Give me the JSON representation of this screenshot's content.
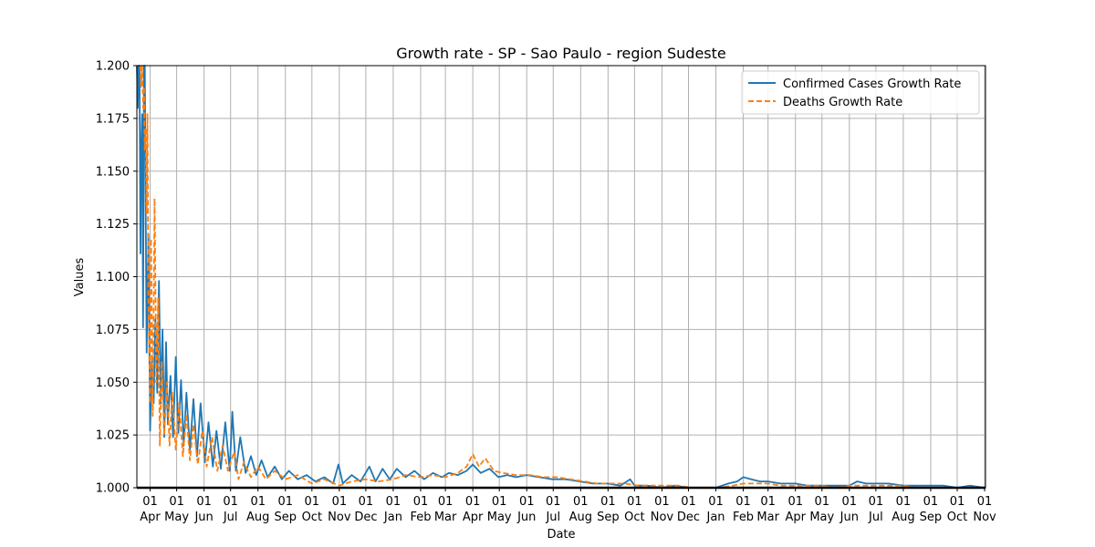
{
  "chart_data": {
    "type": "line",
    "title": "Growth rate - SP - Sao Paulo - region Sudeste",
    "xlabel": "Date",
    "ylabel": "Values",
    "ylim": [
      1.0,
      1.2
    ],
    "xlim": [
      "2020-03-17",
      "2022-11-02"
    ],
    "grid": true,
    "legend_position": "top-right",
    "y_ticks": [
      "1.000",
      "1.025",
      "1.050",
      "1.075",
      "1.100",
      "1.125",
      "1.150",
      "1.175",
      "1.200"
    ],
    "x_ticks": [
      {
        "date": "2020-04-01",
        "day": "01",
        "month": "Apr"
      },
      {
        "date": "2020-05-01",
        "day": "01",
        "month": "May"
      },
      {
        "date": "2020-06-01",
        "day": "01",
        "month": "Jun"
      },
      {
        "date": "2020-07-01",
        "day": "01",
        "month": "Jul"
      },
      {
        "date": "2020-08-01",
        "day": "01",
        "month": "Aug"
      },
      {
        "date": "2020-09-01",
        "day": "01",
        "month": "Sep"
      },
      {
        "date": "2020-10-01",
        "day": "01",
        "month": "Oct"
      },
      {
        "date": "2020-11-01",
        "day": "01",
        "month": "Nov"
      },
      {
        "date": "2020-12-01",
        "day": "01",
        "month": "Dec"
      },
      {
        "date": "2021-01-01",
        "day": "01",
        "month": "Jan"
      },
      {
        "date": "2021-02-01",
        "day": "01",
        "month": "Feb"
      },
      {
        "date": "2021-03-01",
        "day": "01",
        "month": "Mar"
      },
      {
        "date": "2021-04-01",
        "day": "01",
        "month": "Apr"
      },
      {
        "date": "2021-05-01",
        "day": "01",
        "month": "May"
      },
      {
        "date": "2021-06-01",
        "day": "01",
        "month": "Jun"
      },
      {
        "date": "2021-07-01",
        "day": "01",
        "month": "Jul"
      },
      {
        "date": "2021-08-01",
        "day": "01",
        "month": "Aug"
      },
      {
        "date": "2021-09-01",
        "day": "01",
        "month": "Sep"
      },
      {
        "date": "2021-10-01",
        "day": "01",
        "month": "Oct"
      },
      {
        "date": "2021-11-01",
        "day": "01",
        "month": "Nov"
      },
      {
        "date": "2021-12-01",
        "day": "01",
        "month": "Dec"
      },
      {
        "date": "2022-01-01",
        "day": "01",
        "month": "Jan"
      },
      {
        "date": "2022-02-01",
        "day": "01",
        "month": "Feb"
      },
      {
        "date": "2022-03-01",
        "day": "01",
        "month": "Mar"
      },
      {
        "date": "2022-04-01",
        "day": "01",
        "month": "Apr"
      },
      {
        "date": "2022-05-01",
        "day": "01",
        "month": "May"
      },
      {
        "date": "2022-06-01",
        "day": "01",
        "month": "Jun"
      },
      {
        "date": "2022-07-01",
        "day": "01",
        "month": "Jul"
      },
      {
        "date": "2022-08-01",
        "day": "01",
        "month": "Aug"
      },
      {
        "date": "2022-09-01",
        "day": "01",
        "month": "Sep"
      },
      {
        "date": "2022-10-01",
        "day": "01",
        "month": "Oct"
      },
      {
        "date": "2022-11-01",
        "day": "01",
        "month": "Nov"
      }
    ],
    "series": [
      {
        "name": "Confirmed Cases Growth Rate",
        "color": "#1f77b4",
        "style": "solid",
        "points": [
          [
            "2020-03-17",
            1.2
          ],
          [
            "2020-03-18",
            1.18
          ],
          [
            "2020-03-19",
            1.2
          ],
          [
            "2020-03-20",
            1.2
          ],
          [
            "2020-03-21",
            1.111
          ],
          [
            "2020-03-22",
            1.16
          ],
          [
            "2020-03-23",
            1.177
          ],
          [
            "2020-03-24",
            1.076
          ],
          [
            "2020-03-25",
            1.2
          ],
          [
            "2020-03-26",
            1.2
          ],
          [
            "2020-03-27",
            1.13
          ],
          [
            "2020-03-28",
            1.064
          ],
          [
            "2020-03-30",
            1.12
          ],
          [
            "2020-04-01",
            1.027
          ],
          [
            "2020-04-03",
            1.06
          ],
          [
            "2020-04-05",
            1.04
          ],
          [
            "2020-04-07",
            1.08
          ],
          [
            "2020-04-09",
            1.045
          ],
          [
            "2020-04-11",
            1.098
          ],
          [
            "2020-04-13",
            1.04
          ],
          [
            "2020-04-15",
            1.075
          ],
          [
            "2020-04-17",
            1.024
          ],
          [
            "2020-04-19",
            1.069
          ],
          [
            "2020-04-21",
            1.03
          ],
          [
            "2020-04-24",
            1.053
          ],
          [
            "2020-04-27",
            1.024
          ],
          [
            "2020-04-30",
            1.062
          ],
          [
            "2020-05-03",
            1.026
          ],
          [
            "2020-05-06",
            1.051
          ],
          [
            "2020-05-09",
            1.02
          ],
          [
            "2020-05-12",
            1.045
          ],
          [
            "2020-05-16",
            1.018
          ],
          [
            "2020-05-20",
            1.042
          ],
          [
            "2020-05-24",
            1.015
          ],
          [
            "2020-05-28",
            1.04
          ],
          [
            "2020-06-02",
            1.012
          ],
          [
            "2020-06-06",
            1.031
          ],
          [
            "2020-06-11",
            1.01
          ],
          [
            "2020-06-15",
            1.027
          ],
          [
            "2020-06-20",
            1.009
          ],
          [
            "2020-06-25",
            1.031
          ],
          [
            "2020-06-30",
            1.008
          ],
          [
            "2020-07-03",
            1.036
          ],
          [
            "2020-07-07",
            1.008
          ],
          [
            "2020-07-12",
            1.024
          ],
          [
            "2020-07-18",
            1.007
          ],
          [
            "2020-07-24",
            1.015
          ],
          [
            "2020-07-30",
            1.006
          ],
          [
            "2020-08-05",
            1.013
          ],
          [
            "2020-08-12",
            1.005
          ],
          [
            "2020-08-20",
            1.01
          ],
          [
            "2020-08-28",
            1.004
          ],
          [
            "2020-09-05",
            1.008
          ],
          [
            "2020-09-15",
            1.004
          ],
          [
            "2020-09-25",
            1.006
          ],
          [
            "2020-10-05",
            1.003
          ],
          [
            "2020-10-15",
            1.005
          ],
          [
            "2020-10-25",
            1.002
          ],
          [
            "2020-10-31",
            1.011
          ],
          [
            "2020-11-05",
            1.002
          ],
          [
            "2020-11-15",
            1.006
          ],
          [
            "2020-11-25",
            1.003
          ],
          [
            "2020-12-05",
            1.01
          ],
          [
            "2020-12-12",
            1.003
          ],
          [
            "2020-12-20",
            1.009
          ],
          [
            "2020-12-28",
            1.004
          ],
          [
            "2021-01-05",
            1.009
          ],
          [
            "2021-01-15",
            1.005
          ],
          [
            "2021-01-25",
            1.008
          ],
          [
            "2021-02-05",
            1.004
          ],
          [
            "2021-02-15",
            1.007
          ],
          [
            "2021-02-25",
            1.005
          ],
          [
            "2021-03-05",
            1.007
          ],
          [
            "2021-03-15",
            1.006
          ],
          [
            "2021-03-25",
            1.008
          ],
          [
            "2021-04-01",
            1.011
          ],
          [
            "2021-04-10",
            1.007
          ],
          [
            "2021-04-20",
            1.009
          ],
          [
            "2021-04-30",
            1.005
          ],
          [
            "2021-05-10",
            1.006
          ],
          [
            "2021-05-20",
            1.005
          ],
          [
            "2021-06-01",
            1.006
          ],
          [
            "2021-06-15",
            1.005
          ],
          [
            "2021-06-30",
            1.004
          ],
          [
            "2021-07-15",
            1.004
          ],
          [
            "2021-07-31",
            1.003
          ],
          [
            "2021-08-15",
            1.002
          ],
          [
            "2021-08-31",
            1.002
          ],
          [
            "2021-09-15",
            1.001
          ],
          [
            "2021-09-26",
            1.004
          ],
          [
            "2021-10-01",
            1.001
          ],
          [
            "2021-10-15",
            1.001
          ],
          [
            "2021-11-01",
            1.0
          ],
          [
            "2021-11-15",
            1.001
          ],
          [
            "2021-12-01",
            1.0
          ],
          [
            "2021-12-15",
            1.0
          ],
          [
            "2022-01-01",
            1.0
          ],
          [
            "2022-01-15",
            1.002
          ],
          [
            "2022-01-25",
            1.003
          ],
          [
            "2022-02-01",
            1.005
          ],
          [
            "2022-02-10",
            1.004
          ],
          [
            "2022-02-20",
            1.003
          ],
          [
            "2022-03-01",
            1.003
          ],
          [
            "2022-03-15",
            1.002
          ],
          [
            "2022-04-01",
            1.002
          ],
          [
            "2022-04-15",
            1.001
          ],
          [
            "2022-05-01",
            1.001
          ],
          [
            "2022-05-15",
            1.001
          ],
          [
            "2022-06-01",
            1.001
          ],
          [
            "2022-06-10",
            1.003
          ],
          [
            "2022-06-20",
            1.002
          ],
          [
            "2022-07-01",
            1.002
          ],
          [
            "2022-07-15",
            1.002
          ],
          [
            "2022-08-01",
            1.001
          ],
          [
            "2022-08-15",
            1.001
          ],
          [
            "2022-09-01",
            1.001
          ],
          [
            "2022-09-15",
            1.001
          ],
          [
            "2022-10-01",
            1.0
          ],
          [
            "2022-10-15",
            1.001
          ],
          [
            "2022-11-01",
            1.0
          ]
        ]
      },
      {
        "name": "Deaths Growth Rate",
        "color": "#ff7f0e",
        "style": "dashed",
        "points": [
          [
            "2020-03-21",
            1.2
          ],
          [
            "2020-03-22",
            1.19
          ],
          [
            "2020-03-23",
            1.2
          ],
          [
            "2020-03-24",
            1.18
          ],
          [
            "2020-03-25",
            1.19
          ],
          [
            "2020-03-26",
            1.16
          ],
          [
            "2020-03-27",
            1.17
          ],
          [
            "2020-03-28",
            1.13
          ],
          [
            "2020-03-29",
            1.177
          ],
          [
            "2020-03-30",
            1.09
          ],
          [
            "2020-04-01",
            1.04
          ],
          [
            "2020-04-02",
            1.118
          ],
          [
            "2020-04-04",
            1.034
          ],
          [
            "2020-04-06",
            1.137
          ],
          [
            "2020-04-08",
            1.05
          ],
          [
            "2020-04-10",
            1.09
          ],
          [
            "2020-04-12",
            1.02
          ],
          [
            "2020-04-14",
            1.06
          ],
          [
            "2020-04-17",
            1.025
          ],
          [
            "2020-04-20",
            1.05
          ],
          [
            "2020-04-23",
            1.02
          ],
          [
            "2020-04-26",
            1.045
          ],
          [
            "2020-04-30",
            1.018
          ],
          [
            "2020-05-04",
            1.04
          ],
          [
            "2020-05-08",
            1.015
          ],
          [
            "2020-05-12",
            1.035
          ],
          [
            "2020-05-16",
            1.013
          ],
          [
            "2020-05-20",
            1.03
          ],
          [
            "2020-05-25",
            1.011
          ],
          [
            "2020-05-30",
            1.027
          ],
          [
            "2020-06-04",
            1.01
          ],
          [
            "2020-06-10",
            1.024
          ],
          [
            "2020-06-16",
            1.008
          ],
          [
            "2020-06-22",
            1.02
          ],
          [
            "2020-06-28",
            1.008
          ],
          [
            "2020-07-05",
            1.017
          ],
          [
            "2020-07-10",
            1.004
          ],
          [
            "2020-07-16",
            1.012
          ],
          [
            "2020-07-24",
            1.005
          ],
          [
            "2020-08-01",
            1.01
          ],
          [
            "2020-08-10",
            1.004
          ],
          [
            "2020-08-20",
            1.008
          ],
          [
            "2020-09-01",
            1.004
          ],
          [
            "2020-09-15",
            1.006
          ],
          [
            "2020-10-01",
            1.002
          ],
          [
            "2020-10-15",
            1.004
          ],
          [
            "2020-11-01",
            1.001
          ],
          [
            "2020-11-15",
            1.003
          ],
          [
            "2020-12-01",
            1.004
          ],
          [
            "2020-12-15",
            1.003
          ],
          [
            "2021-01-01",
            1.004
          ],
          [
            "2021-01-15",
            1.006
          ],
          [
            "2021-02-01",
            1.005
          ],
          [
            "2021-02-15",
            1.006
          ],
          [
            "2021-03-01",
            1.005
          ],
          [
            "2021-03-15",
            1.007
          ],
          [
            "2021-03-25",
            1.01
          ],
          [
            "2021-04-01",
            1.016
          ],
          [
            "2021-04-08",
            1.01
          ],
          [
            "2021-04-15",
            1.014
          ],
          [
            "2021-04-25",
            1.008
          ],
          [
            "2021-05-05",
            1.007
          ],
          [
            "2021-05-20",
            1.006
          ],
          [
            "2021-06-05",
            1.006
          ],
          [
            "2021-06-20",
            1.005
          ],
          [
            "2021-07-05",
            1.005
          ],
          [
            "2021-07-20",
            1.004
          ],
          [
            "2021-08-05",
            1.003
          ],
          [
            "2021-08-20",
            1.002
          ],
          [
            "2021-09-05",
            1.002
          ],
          [
            "2021-09-20",
            1.002
          ],
          [
            "2021-10-05",
            1.001
          ],
          [
            "2021-10-20",
            1.001
          ],
          [
            "2021-11-05",
            1.001
          ],
          [
            "2021-11-20",
            1.001
          ],
          [
            "2021-12-05",
            1.0
          ],
          [
            "2021-12-20",
            1.0
          ],
          [
            "2022-01-05",
            1.0
          ],
          [
            "2022-01-20",
            1.001
          ],
          [
            "2022-02-01",
            1.002
          ],
          [
            "2022-02-15",
            1.002
          ],
          [
            "2022-03-01",
            1.002
          ],
          [
            "2022-03-15",
            1.001
          ],
          [
            "2022-04-01",
            1.001
          ],
          [
            "2022-04-15",
            1.001
          ],
          [
            "2022-05-01",
            1.001
          ],
          [
            "2022-05-15",
            1.0
          ],
          [
            "2022-06-01",
            1.001
          ],
          [
            "2022-06-15",
            1.001
          ],
          [
            "2022-07-01",
            1.001
          ],
          [
            "2022-07-15",
            1.001
          ],
          [
            "2022-08-01",
            1.001
          ],
          [
            "2022-08-15",
            1.0
          ],
          [
            "2022-09-01",
            1.0
          ],
          [
            "2022-09-15",
            1.0
          ],
          [
            "2022-10-01",
            1.0
          ],
          [
            "2022-10-15",
            1.0
          ],
          [
            "2022-11-01",
            1.0
          ]
        ]
      }
    ]
  }
}
